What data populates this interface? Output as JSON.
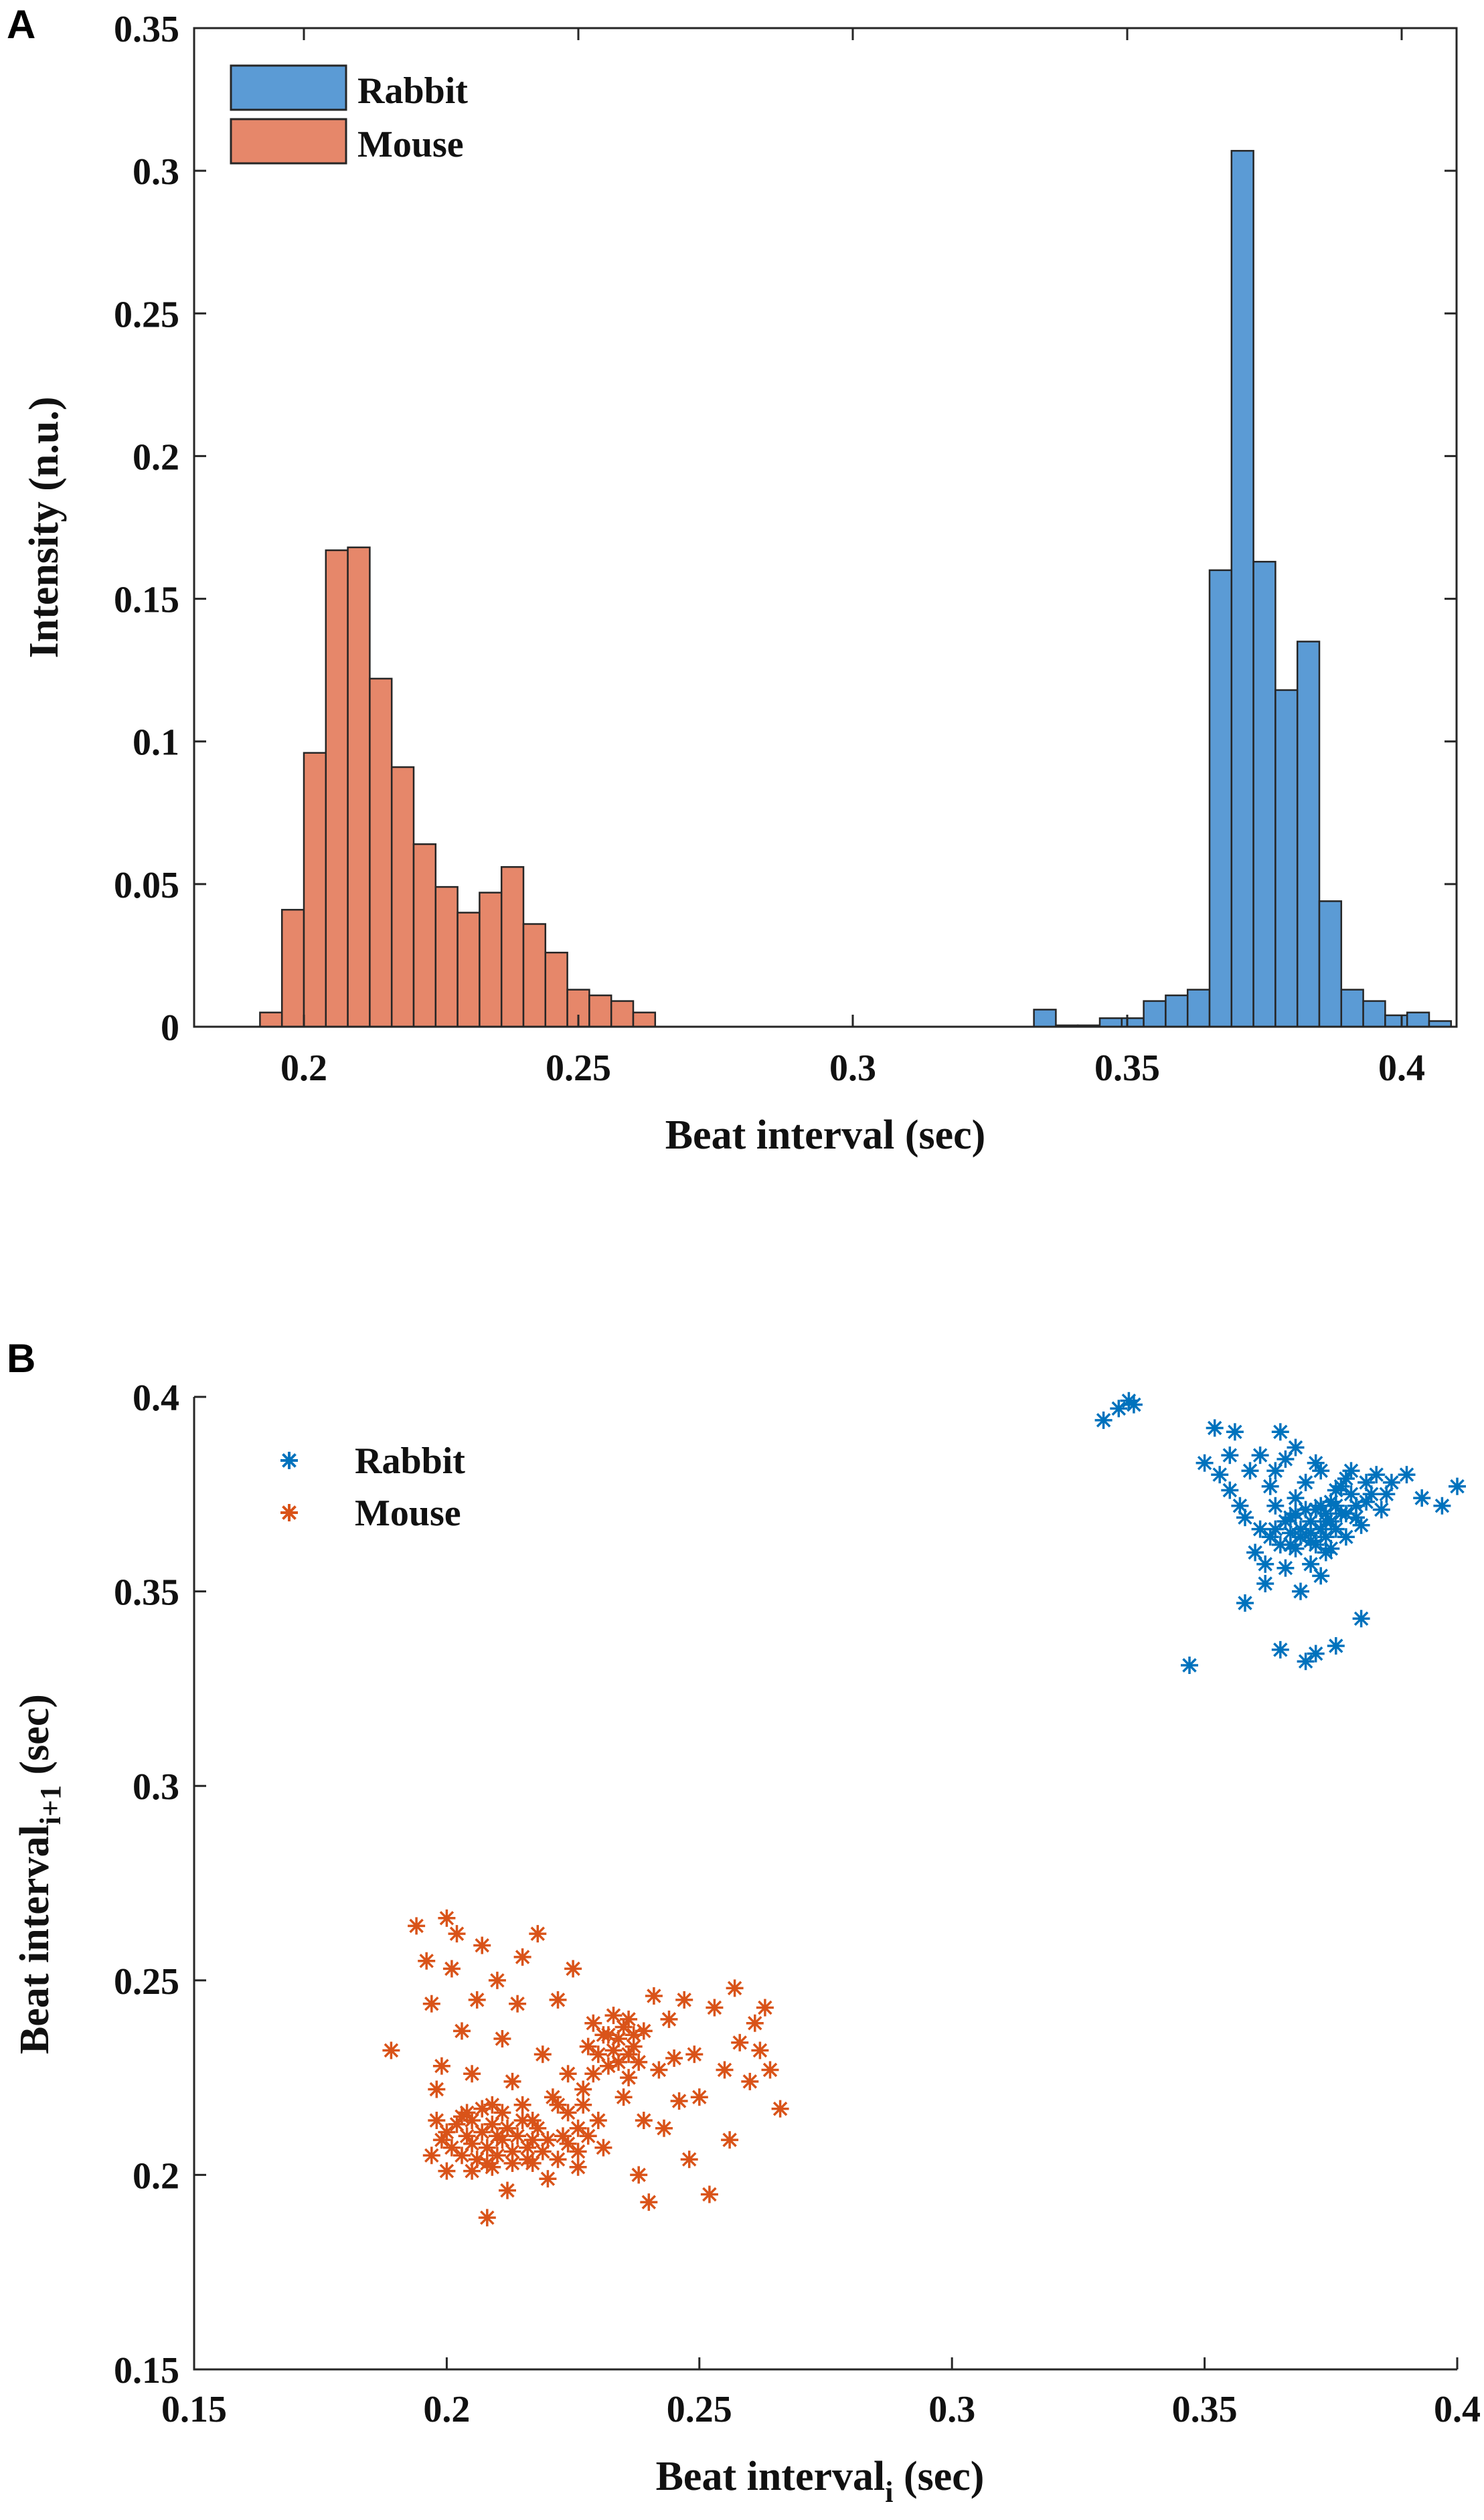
{
  "chart_data": [
    {
      "type": "histogram",
      "panel_label": "A",
      "title": "",
      "xlabel": "Beat interval (sec)",
      "ylabel": "Intensity (n.u.)",
      "xlim": [
        0.18,
        0.41
      ],
      "ylim": [
        0,
        0.35
      ],
      "xticks": [
        0.2,
        0.25,
        0.3,
        0.35,
        0.4
      ],
      "xtick_labels": [
        "0.2",
        "0.25",
        "0.3",
        "0.35",
        "0.4"
      ],
      "yticks": [
        0,
        0.05,
        0.1,
        0.15,
        0.2,
        0.25,
        0.3,
        0.35
      ],
      "ytick_labels": [
        "0",
        "0.05",
        "0.1",
        "0.15",
        "0.2",
        "0.25",
        "0.3",
        "0.35"
      ],
      "legend_position": "top-left",
      "series": [
        {
          "name": "Rabbit",
          "color": "#5b9bd5",
          "bin_width": 0.004,
          "bin_starts": [
            0.333,
            0.337,
            0.341,
            0.345,
            0.349,
            0.353,
            0.357,
            0.361,
            0.365,
            0.369,
            0.373,
            0.377,
            0.381,
            0.385,
            0.389,
            0.393,
            0.397,
            0.401,
            0.405
          ],
          "values": [
            0.006,
            0.0005,
            0.0005,
            0.003,
            0.003,
            0.009,
            0.011,
            0.013,
            0.16,
            0.307,
            0.163,
            0.118,
            0.135,
            0.044,
            0.013,
            0.009,
            0.004,
            0.005,
            0.002
          ]
        },
        {
          "name": "Mouse",
          "color": "#e6876a",
          "bin_width": 0.004,
          "bin_starts": [
            0.192,
            0.196,
            0.2,
            0.204,
            0.208,
            0.212,
            0.216,
            0.22,
            0.224,
            0.228,
            0.232,
            0.236,
            0.24,
            0.244,
            0.248,
            0.252,
            0.256,
            0.26
          ],
          "values": [
            0.005,
            0.041,
            0.096,
            0.167,
            0.168,
            0.122,
            0.091,
            0.064,
            0.049,
            0.04,
            0.047,
            0.056,
            0.036,
            0.026,
            0.013,
            0.011,
            0.009,
            0.005
          ]
        }
      ]
    },
    {
      "type": "scatter",
      "panel_label": "B",
      "title": "",
      "xlabel": "Beat interval",
      "xlabel_subscript": "i",
      "xlabel_suffix": " (sec)",
      "ylabel": "Beat interval",
      "ylabel_subscript": "i+1",
      "ylabel_suffix": " (sec)",
      "xlim": [
        0.15,
        0.4
      ],
      "ylim": [
        0.15,
        0.4
      ],
      "xticks": [
        0.15,
        0.2,
        0.25,
        0.3,
        0.35,
        0.4
      ],
      "xtick_labels": [
        "0.15",
        "0.2",
        "0.25",
        "0.3",
        "0.35",
        "0.4"
      ],
      "yticks": [
        0.15,
        0.2,
        0.25,
        0.3,
        0.35,
        0.4
      ],
      "ytick_labels": [
        "0.15",
        "0.2",
        "0.25",
        "0.3",
        "0.35",
        "0.4"
      ],
      "legend_position": "top-left",
      "marker": "*",
      "series": [
        {
          "name": "Rabbit",
          "color": "#0072bd",
          "points": [
            [
              0.33,
              0.394
            ],
            [
              0.333,
              0.397
            ],
            [
              0.335,
              0.399
            ],
            [
              0.336,
              0.398
            ],
            [
              0.347,
              0.331
            ],
            [
              0.35,
              0.383
            ],
            [
              0.352,
              0.392
            ],
            [
              0.353,
              0.38
            ],
            [
              0.355,
              0.385
            ],
            [
              0.356,
              0.391
            ],
            [
              0.357,
              0.372
            ],
            [
              0.358,
              0.347
            ],
            [
              0.36,
              0.36
            ],
            [
              0.361,
              0.366
            ],
            [
              0.362,
              0.352
            ],
            [
              0.363,
              0.377
            ],
            [
              0.364,
              0.372
            ],
            [
              0.365,
              0.391
            ],
            [
              0.365,
              0.335
            ],
            [
              0.366,
              0.384
            ],
            [
              0.367,
              0.362
            ],
            [
              0.367,
              0.369
            ],
            [
              0.368,
              0.374
            ],
            [
              0.369,
              0.366
            ],
            [
              0.37,
              0.378
            ],
            [
              0.37,
              0.332
            ],
            [
              0.371,
              0.363
            ],
            [
              0.372,
              0.371
            ],
            [
              0.372,
              0.334
            ],
            [
              0.373,
              0.381
            ],
            [
              0.374,
              0.368
            ],
            [
              0.374,
              0.36
            ],
            [
              0.375,
              0.373
            ],
            [
              0.376,
              0.336
            ],
            [
              0.376,
              0.376
            ],
            [
              0.377,
              0.37
            ],
            [
              0.378,
              0.364
            ],
            [
              0.378,
              0.379
            ],
            [
              0.379,
              0.381
            ],
            [
              0.38,
              0.372
            ],
            [
              0.381,
              0.343
            ],
            [
              0.381,
              0.367
            ],
            [
              0.382,
              0.378
            ],
            [
              0.383,
              0.375
            ],
            [
              0.385,
              0.371
            ],
            [
              0.387,
              0.378
            ],
            [
              0.39,
              0.38
            ],
            [
              0.393,
              0.374
            ],
            [
              0.397,
              0.372
            ],
            [
              0.4,
              0.377
            ],
            [
              0.362,
              0.357
            ],
            [
              0.366,
              0.356
            ],
            [
              0.369,
              0.35
            ],
            [
              0.371,
              0.357
            ],
            [
              0.373,
              0.354
            ],
            [
              0.375,
              0.361
            ],
            [
              0.358,
              0.369
            ],
            [
              0.364,
              0.381
            ],
            [
              0.368,
              0.387
            ],
            [
              0.372,
              0.383
            ],
            [
              0.37,
              0.371
            ],
            [
              0.368,
              0.37
            ],
            [
              0.371,
              0.368
            ],
            [
              0.373,
              0.372
            ],
            [
              0.374,
              0.37
            ],
            [
              0.376,
              0.372
            ],
            [
              0.377,
              0.377
            ],
            [
              0.379,
              0.375
            ],
            [
              0.378,
              0.37
            ],
            [
              0.375,
              0.368
            ],
            [
              0.373,
              0.366
            ],
            [
              0.371,
              0.365
            ],
            [
              0.369,
              0.364
            ],
            [
              0.367,
              0.365
            ],
            [
              0.366,
              0.368
            ],
            [
              0.364,
              0.366
            ],
            [
              0.363,
              0.364
            ],
            [
              0.365,
              0.362
            ],
            [
              0.368,
              0.361
            ],
            [
              0.372,
              0.362
            ],
            [
              0.374,
              0.364
            ],
            [
              0.376,
              0.366
            ],
            [
              0.38,
              0.369
            ],
            [
              0.382,
              0.373
            ],
            [
              0.384,
              0.38
            ],
            [
              0.386,
              0.375
            ],
            [
              0.359,
              0.381
            ],
            [
              0.361,
              0.385
            ],
            [
              0.355,
              0.376
            ]
          ]
        },
        {
          "name": "Mouse",
          "color": "#d95319",
          "points": [
            [
              0.189,
              0.232
            ],
            [
              0.194,
              0.264
            ],
            [
              0.196,
              0.255
            ],
            [
              0.197,
              0.244
            ],
            [
              0.198,
              0.222
            ],
            [
              0.199,
              0.228
            ],
            [
              0.2,
              0.266
            ],
            [
              0.2,
              0.201
            ],
            [
              0.201,
              0.253
            ],
            [
              0.202,
              0.262
            ],
            [
              0.203,
              0.237
            ],
            [
              0.204,
              0.216
            ],
            [
              0.205,
              0.208
            ],
            [
              0.205,
              0.226
            ],
            [
              0.206,
              0.245
            ],
            [
              0.207,
              0.259
            ],
            [
              0.208,
              0.189
            ],
            [
              0.208,
              0.203
            ],
            [
              0.209,
              0.218
            ],
            [
              0.21,
              0.25
            ],
            [
              0.21,
              0.21
            ],
            [
              0.211,
              0.235
            ],
            [
              0.212,
              0.196
            ],
            [
              0.213,
              0.224
            ],
            [
              0.214,
              0.244
            ],
            [
              0.215,
              0.256
            ],
            [
              0.216,
              0.207
            ],
            [
              0.217,
              0.214
            ],
            [
              0.218,
              0.262
            ],
            [
              0.219,
              0.231
            ],
            [
              0.22,
              0.199
            ],
            [
              0.221,
              0.22
            ],
            [
              0.222,
              0.245
            ],
            [
              0.223,
              0.21
            ],
            [
              0.224,
              0.226
            ],
            [
              0.225,
              0.253
            ],
            [
              0.226,
              0.202
            ],
            [
              0.227,
              0.218
            ],
            [
              0.228,
              0.233
            ],
            [
              0.229,
              0.239
            ],
            [
              0.23,
              0.214
            ],
            [
              0.231,
              0.207
            ],
            [
              0.232,
              0.236
            ],
            [
              0.233,
              0.241
            ],
            [
              0.234,
              0.229
            ],
            [
              0.235,
              0.22
            ],
            [
              0.236,
              0.24
            ],
            [
              0.237,
              0.233
            ],
            [
              0.238,
              0.2
            ],
            [
              0.239,
              0.214
            ],
            [
              0.24,
              0.193
            ],
            [
              0.241,
              0.246
            ],
            [
              0.242,
              0.227
            ],
            [
              0.243,
              0.212
            ],
            [
              0.244,
              0.24
            ],
            [
              0.245,
              0.23
            ],
            [
              0.246,
              0.219
            ],
            [
              0.247,
              0.245
            ],
            [
              0.248,
              0.204
            ],
            [
              0.249,
              0.231
            ],
            [
              0.25,
              0.22
            ],
            [
              0.252,
              0.195
            ],
            [
              0.253,
              0.243
            ],
            [
              0.255,
              0.227
            ],
            [
              0.256,
              0.209
            ],
            [
              0.257,
              0.248
            ],
            [
              0.258,
              0.234
            ],
            [
              0.26,
              0.224
            ],
            [
              0.261,
              0.239
            ],
            [
              0.262,
              0.232
            ],
            [
              0.263,
              0.243
            ],
            [
              0.264,
              0.227
            ],
            [
              0.266,
              0.217
            ],
            [
              0.2,
              0.211
            ],
            [
              0.201,
              0.207
            ],
            [
              0.202,
              0.213
            ],
            [
              0.203,
              0.205
            ],
            [
              0.204,
              0.21
            ],
            [
              0.205,
              0.214
            ],
            [
              0.206,
              0.204
            ],
            [
              0.207,
              0.211
            ],
            [
              0.208,
              0.207
            ],
            [
              0.209,
              0.213
            ],
            [
              0.21,
              0.205
            ],
            [
              0.211,
              0.209
            ],
            [
              0.212,
              0.212
            ],
            [
              0.213,
              0.206
            ],
            [
              0.214,
              0.21
            ],
            [
              0.215,
              0.214
            ],
            [
              0.216,
              0.204
            ],
            [
              0.217,
              0.209
            ],
            [
              0.218,
              0.212
            ],
            [
              0.219,
              0.206
            ],
            [
              0.22,
              0.209
            ],
            [
              0.222,
              0.204
            ],
            [
              0.224,
              0.208
            ],
            [
              0.226,
              0.206
            ],
            [
              0.228,
              0.21
            ],
            [
              0.203,
              0.215
            ],
            [
              0.205,
              0.201
            ],
            [
              0.207,
              0.217
            ],
            [
              0.209,
              0.202
            ],
            [
              0.211,
              0.216
            ],
            [
              0.213,
              0.203
            ],
            [
              0.215,
              0.218
            ],
            [
              0.217,
              0.203
            ],
            [
              0.199,
              0.209
            ],
            [
              0.198,
              0.214
            ],
            [
              0.197,
              0.205
            ],
            [
              0.232,
              0.228
            ],
            [
              0.234,
              0.235
            ],
            [
              0.236,
              0.231
            ],
            [
              0.235,
              0.238
            ],
            [
              0.233,
              0.232
            ],
            [
              0.231,
              0.236
            ],
            [
              0.237,
              0.236
            ],
            [
              0.238,
              0.229
            ],
            [
              0.239,
              0.237
            ],
            [
              0.23,
              0.231
            ],
            [
              0.229,
              0.226
            ],
            [
              0.236,
              0.225
            ],
            [
              0.226,
              0.212
            ],
            [
              0.224,
              0.216
            ],
            [
              0.222,
              0.218
            ],
            [
              0.227,
              0.222
            ]
          ]
        }
      ]
    }
  ]
}
